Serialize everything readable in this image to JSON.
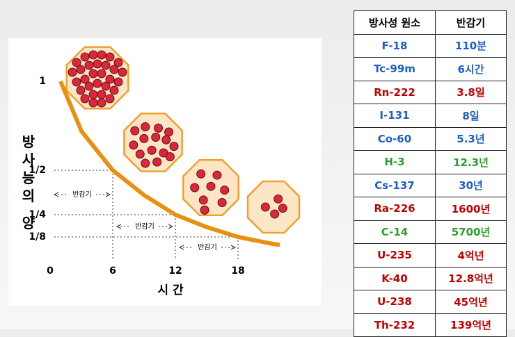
{
  "chart_data": {
    "type": "line",
    "y_label": "방사능의 양",
    "x_label": "시 간",
    "x": [
      1,
      3,
      6,
      9,
      12,
      15,
      18,
      21,
      22
    ],
    "series": [
      {
        "color": "#e8900f",
        "values": [
          1,
          0.72,
          0.5,
          0.36,
          0.25,
          0.18,
          0.125,
          0.09,
          0.08
        ]
      }
    ],
    "xlim": [
      0,
      23
    ],
    "ylim": [
      0,
      1.1
    ],
    "xticks": [
      0,
      6,
      12,
      18
    ],
    "yticks": [
      1,
      {
        "value": 0.5,
        "label": "1/2"
      },
      {
        "value": 0.25,
        "label": "1/4"
      },
      {
        "value": 0.125,
        "label": "1/8"
      }
    ],
    "annotations": [
      "반감기",
      "반감기",
      "반감기"
    ]
  },
  "table": {
    "header": [
      "방사성 원소",
      "반감기"
    ],
    "rows": [
      [
        "F-18",
        "110분"
      ],
      [
        "Tc-99m",
        "6시간"
      ],
      [
        "Rn-222",
        "3.8일"
      ],
      [
        "I-131",
        "8일"
      ],
      [
        "Co-60",
        "5.3년"
      ],
      [
        "H-3",
        "12.3년"
      ],
      [
        "Cs-137",
        "30년"
      ],
      [
        "Ra-226",
        "1600년"
      ],
      [
        "C-14",
        "5700년"
      ],
      [
        "U-235",
        "4억년"
      ],
      [
        "K-40",
        "12.8억년"
      ],
      [
        "U-238",
        "45억년"
      ],
      [
        "Th-232",
        "139억년"
      ]
    ],
    "row_colors": [
      "#1f5fbf",
      "#1f5fbf",
      "#c00000",
      "#1f5fbf",
      "#1f5fbf",
      "#2aa02a",
      "#1f5fbf",
      "#c00000",
      "#2aa02a",
      "#c00000",
      "#c00000",
      "#c00000",
      "#c00000"
    ]
  }
}
